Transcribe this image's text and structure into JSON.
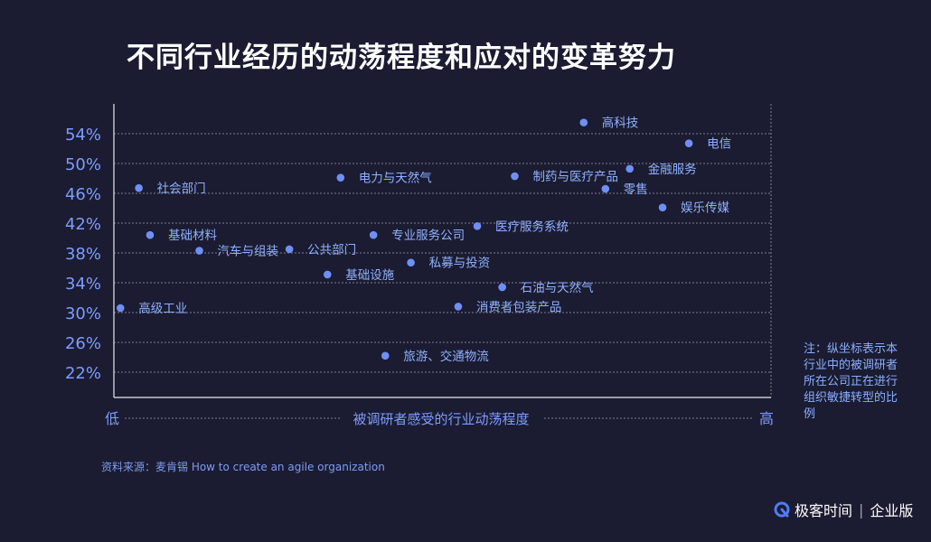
{
  "title": "不同行业经历的动荡程度和应对的变革努力",
  "note": "注：纵坐标表示本行业中的被调研者所在公司正在进行组织敏捷转型的比例",
  "source": "资料来源：麦肯锡 How to create an agile organization",
  "brand": {
    "name": "极客时间",
    "suffix": "企业版"
  },
  "colors": {
    "background": "#1b1c31",
    "point": "#6f8ff5",
    "label": "#8fb0ff",
    "grid": "#cfd3e2"
  },
  "chart_data": {
    "type": "scatter",
    "xlabel": "被调研者感受的行业动荡程度",
    "x_low_label": "低",
    "x_high_label": "高",
    "ylabel": "",
    "ylim": [
      19,
      56
    ],
    "xlim": [
      0,
      100
    ],
    "yticks": [
      22,
      26,
      30,
      34,
      38,
      42,
      46,
      50,
      54
    ],
    "ytick_labels": [
      "22%",
      "26%",
      "30%",
      "34%",
      "38%",
      "42%",
      "46%",
      "50%",
      "54%"
    ],
    "grid": true,
    "points": [
      {
        "label": "高科技",
        "x": 71.5,
        "y": 55.5
      },
      {
        "label": "电信",
        "x": 87.5,
        "y": 52.7
      },
      {
        "label": "金融服务",
        "x": 78.5,
        "y": 49.3
      },
      {
        "label": "零售",
        "x": 74.8,
        "y": 46.6
      },
      {
        "label": "娱乐传媒",
        "x": 83.5,
        "y": 44.1
      },
      {
        "label": "社会部门",
        "x": 3.8,
        "y": 46.7
      },
      {
        "label": "电力与天然气",
        "x": 34.5,
        "y": 48.1
      },
      {
        "label": "制药与医疗产品",
        "x": 61.0,
        "y": 48.3
      },
      {
        "label": "医疗服务系统",
        "x": 55.3,
        "y": 41.6
      },
      {
        "label": "基础材料",
        "x": 5.5,
        "y": 40.4
      },
      {
        "label": "专业服务公司",
        "x": 39.5,
        "y": 40.4
      },
      {
        "label": "汽车与组装",
        "x": 13.0,
        "y": 38.3
      },
      {
        "label": "公共部门",
        "x": 26.7,
        "y": 38.5
      },
      {
        "label": "私募与投资",
        "x": 45.2,
        "y": 36.7
      },
      {
        "label": "基础设施",
        "x": 32.5,
        "y": 35.1
      },
      {
        "label": "石油与天然气",
        "x": 59.1,
        "y": 33.4
      },
      {
        "label": "高级工业",
        "x": 1.0,
        "y": 30.6
      },
      {
        "label": "消费者包装产品",
        "x": 52.4,
        "y": 30.8
      },
      {
        "label": "旅游、交通物流",
        "x": 41.3,
        "y": 24.2
      }
    ]
  }
}
